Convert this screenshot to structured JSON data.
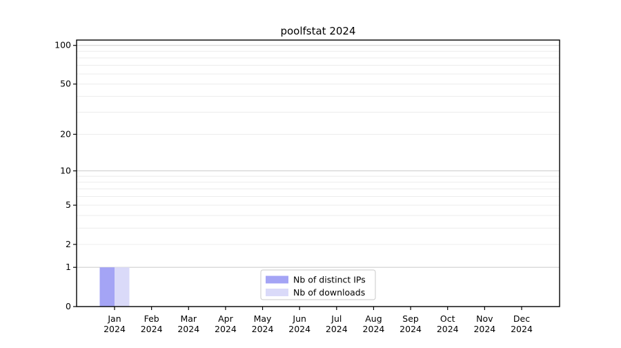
{
  "chart_data": {
    "type": "bar",
    "title": "poolfstat 2024",
    "categories": [
      "Jan 2024",
      "Feb 2024",
      "Mar 2024",
      "Apr 2024",
      "May 2024",
      "Jun 2024",
      "Jul 2024",
      "Aug 2024",
      "Sep 2024",
      "Oct 2024",
      "Nov 2024",
      "Dec 2024"
    ],
    "months": [
      "Jan",
      "Feb",
      "Mar",
      "Apr",
      "May",
      "Jun",
      "Jul",
      "Aug",
      "Sep",
      "Oct",
      "Nov",
      "Dec"
    ],
    "year_label": "2024",
    "series": [
      {
        "name": "Nb of distinct IPs",
        "color": "#a4a4f5",
        "values": [
          1,
          0,
          0,
          0,
          0,
          0,
          0,
          0,
          0,
          0,
          0,
          0
        ]
      },
      {
        "name": "Nb of downloads",
        "color": "#dadaf9",
        "values": [
          1,
          0,
          0,
          0,
          0,
          0,
          0,
          0,
          0,
          0,
          0,
          0
        ]
      }
    ],
    "xlabel": "",
    "ylabel": "",
    "y_scale": "log1p",
    "ylim": [
      0,
      110
    ],
    "y_ticks": [
      0,
      1,
      2,
      5,
      10,
      20,
      50,
      100
    ],
    "y_major_gridlines": [
      1,
      10,
      100
    ],
    "y_minor_gridlines": [
      2,
      3,
      4,
      5,
      6,
      7,
      8,
      9,
      20,
      30,
      40,
      50,
      60,
      70,
      80,
      90
    ],
    "grid": "on",
    "legend_position": "lower center inside plot"
  },
  "colors": {
    "axis": "#000000",
    "grid_major": "#cfcfcf",
    "grid_minor": "#ececec",
    "legend_border": "#c9c9c9",
    "legend_background": "#ffffff",
    "text": "#000000"
  }
}
